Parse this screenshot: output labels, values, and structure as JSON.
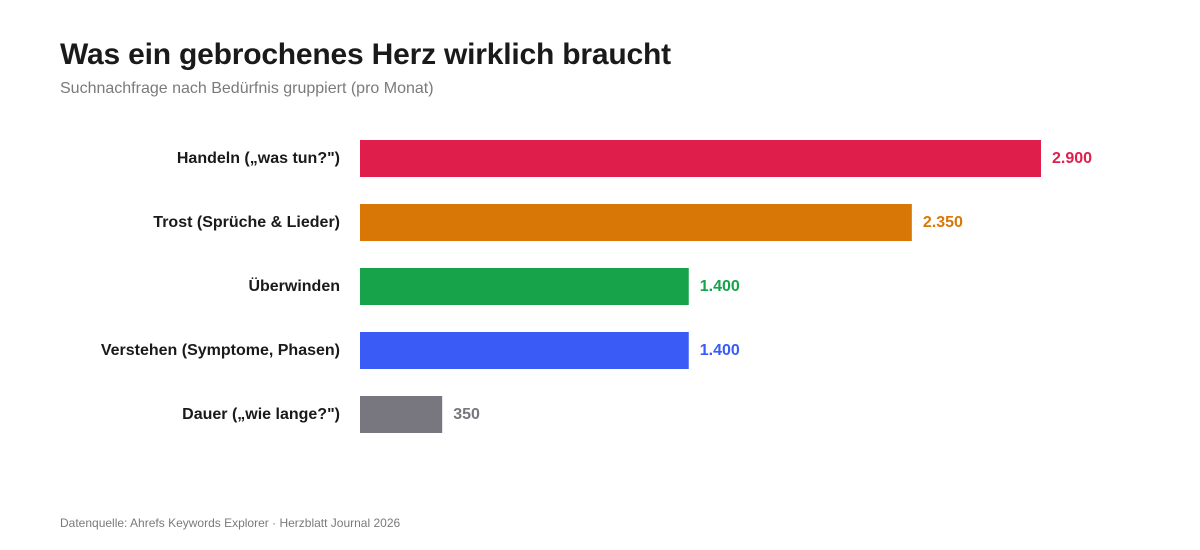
{
  "header": {
    "title": "Was ein gebrochenes Herz wirklich braucht",
    "subtitle": "Suchnachfrage nach Bedürfnis gruppiert (pro Monat)"
  },
  "footer": {
    "source": "Datenquelle: Ahrefs Keywords Explorer · Herzblatt Journal 2026"
  },
  "chart_data": {
    "type": "bar",
    "orientation": "horizontal",
    "title": "Was ein gebrochenes Herz wirklich braucht",
    "subtitle": "Suchnachfrage nach Bedürfnis gruppiert (pro Monat)",
    "categories": [
      "Handeln („was tun?\")",
      "Trost (Sprüche & Lieder)",
      "Überwinden",
      "Verstehen (Symptome, Phasen)",
      "Dauer („wie lange?\")"
    ],
    "values": [
      2900,
      2350,
      1400,
      1400,
      350
    ],
    "value_labels": [
      "2.900",
      "2.350",
      "1.400",
      "1.400",
      "350"
    ],
    "colors": [
      "#e01e4b",
      "#d97706",
      "#16a34a",
      "#3b5bf6",
      "#78767e"
    ],
    "xlim": [
      0,
      2900
    ],
    "grid": false,
    "legend": "none"
  }
}
